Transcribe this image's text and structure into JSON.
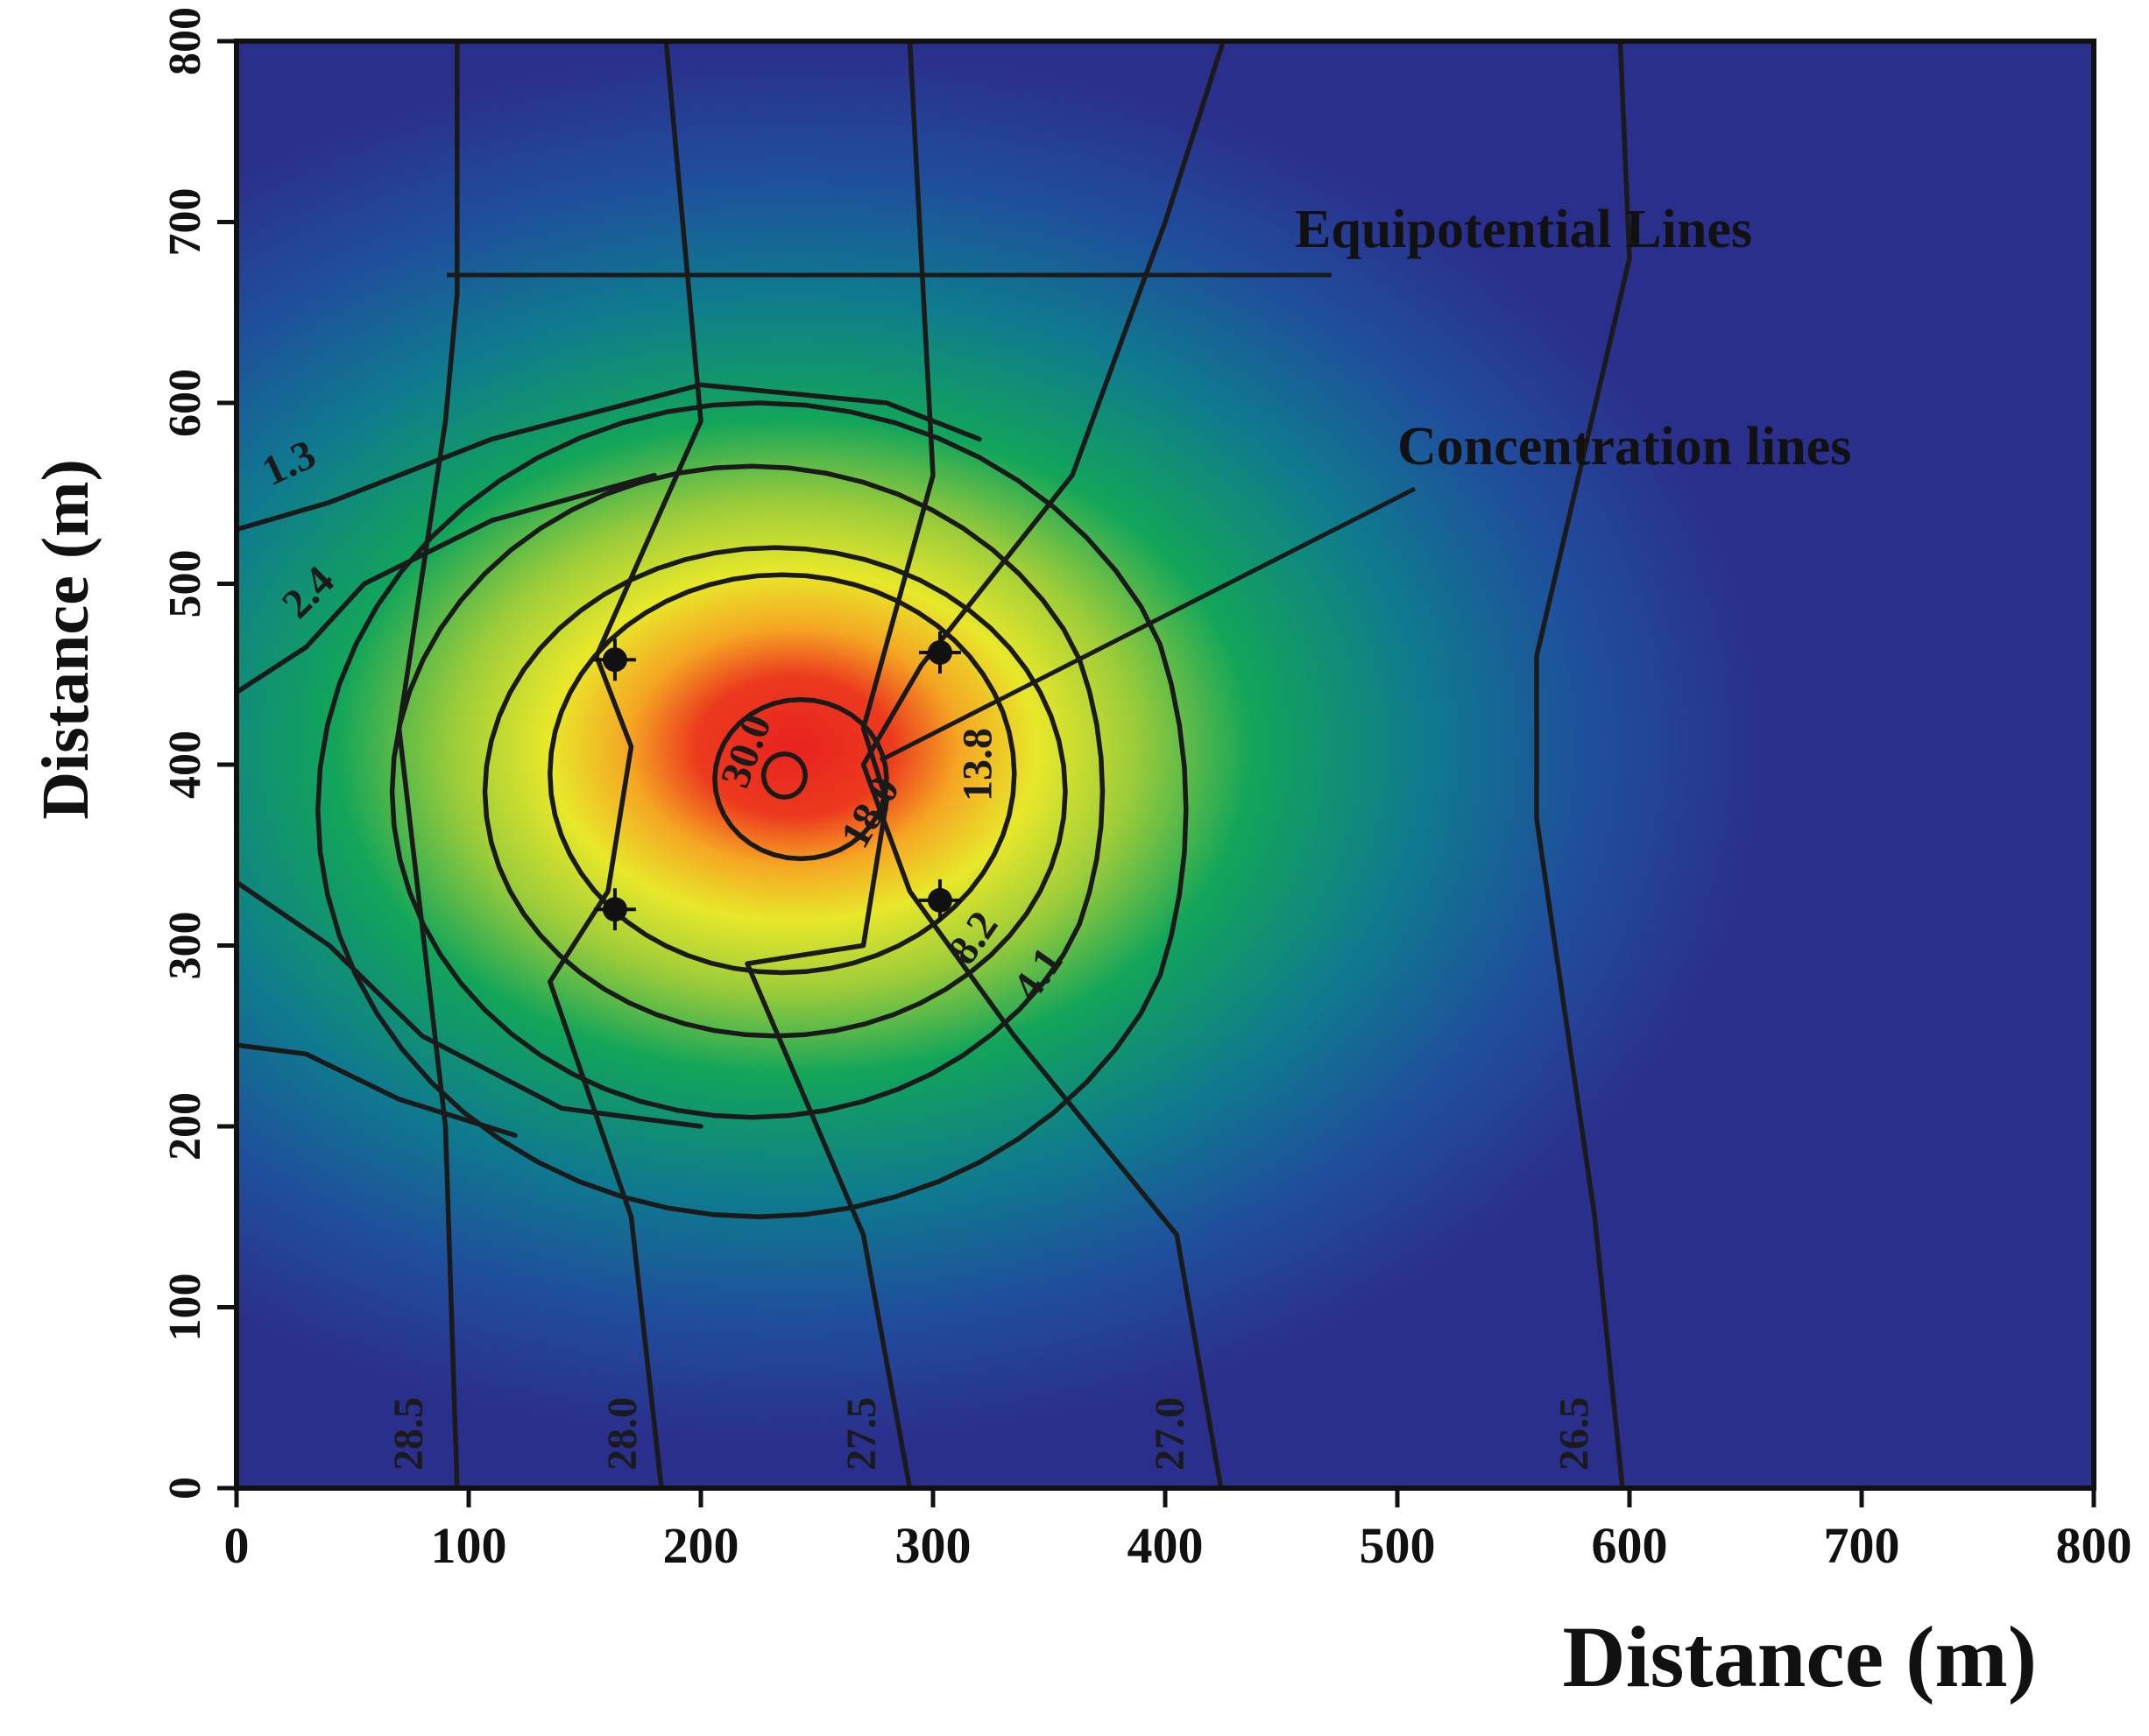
{
  "chart_data": {
    "type": "heatmap",
    "title": "",
    "xlabel": "Distance (m)",
    "ylabel": "Distance (m)",
    "xlim": [
      0,
      800
    ],
    "ylim": [
      0,
      800
    ],
    "xticks": [
      "0",
      "100",
      "200",
      "300",
      "400",
      "500",
      "600",
      "700",
      "800"
    ],
    "yticks": [
      "0",
      "100",
      "200",
      "300",
      "400",
      "500",
      "600",
      "700",
      "800"
    ],
    "colormap": [
      "#2b2f8c",
      "#1f4e9c",
      "#0f6f9a",
      "#0aa160",
      "#7cc63f",
      "#e8e82a",
      "#f5a623",
      "#e8221f"
    ],
    "plume_peak": {
      "x": 240,
      "y": 390,
      "value": 30.0
    },
    "concentration_contours": [
      1.3,
      2.4,
      4.1,
      8.2,
      13.8,
      18.0,
      30.0
    ],
    "concentration_labels": [
      "1.3",
      "2.4",
      "4.1",
      "8.2",
      "13.8",
      "18.0",
      "30.0"
    ],
    "equipotential_contours": [
      28.5,
      28.0,
      27.5,
      27.0,
      26.5
    ],
    "equipotential_labels": [
      "28.5",
      "28.0",
      "27.5",
      "27.0",
      "26.5"
    ],
    "wells": [
      {
        "x": 163,
        "y": 458
      },
      {
        "x": 303,
        "y": 462
      },
      {
        "x": 163,
        "y": 320
      },
      {
        "x": 303,
        "y": 325
      }
    ],
    "annotations": [
      {
        "text": "Equipotential Lines",
        "target": "equipotential"
      },
      {
        "text": "Concentration lines",
        "target": "concentration"
      }
    ]
  }
}
